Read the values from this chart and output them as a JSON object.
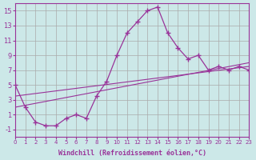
{
  "xlabel": "Windchill (Refroidissement éolien,°C)",
  "background_color": "#cce8e8",
  "grid_color": "#aaaaaa",
  "line_color": "#993399",
  "xmin": 0,
  "xmax": 23,
  "ymin": -2,
  "ymax": 16,
  "yticks": [
    -1,
    1,
    3,
    5,
    7,
    9,
    11,
    13,
    15
  ],
  "xticks": [
    0,
    1,
    2,
    3,
    4,
    5,
    6,
    7,
    8,
    9,
    10,
    11,
    12,
    13,
    14,
    15,
    16,
    17,
    18,
    19,
    20,
    21,
    22,
    23
  ],
  "main_x": [
    0,
    1,
    2,
    3,
    4,
    5,
    6,
    7,
    8,
    9,
    10,
    11,
    12,
    13,
    14,
    15,
    16,
    17,
    18,
    19,
    20,
    21,
    22,
    23
  ],
  "main_y": [
    5,
    2,
    0,
    -0.5,
    -0.5,
    0.5,
    1,
    0.5,
    3.5,
    5.5,
    9,
    12,
    13.5,
    15,
    15.5,
    12,
    10,
    8.5,
    9,
    7,
    7.5,
    7,
    7.5,
    7
  ],
  "line2_x": [
    0,
    23
  ],
  "line2_y": [
    2,
    8
  ],
  "line3_x": [
    0,
    23
  ],
  "line3_y": [
    3.5,
    7.5
  ],
  "marker": "+"
}
